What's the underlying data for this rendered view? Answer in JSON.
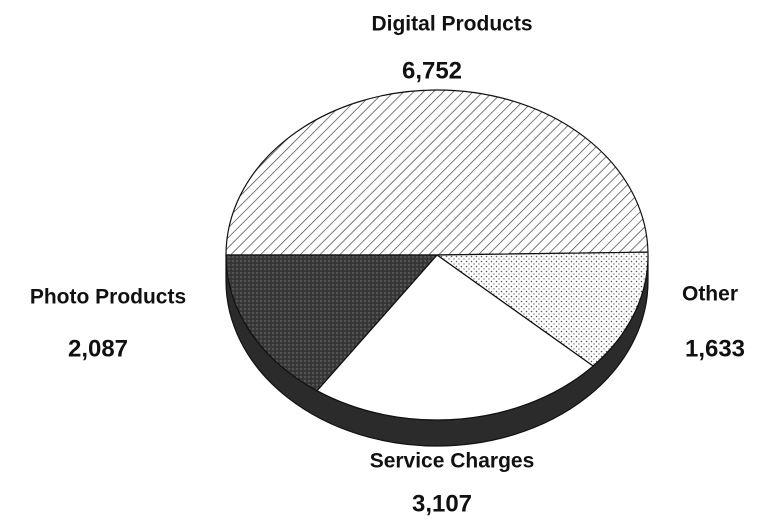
{
  "chart_data": {
    "type": "pie",
    "categories": [
      "Digital Products",
      "Other",
      "Service Charges",
      "Photo Products"
    ],
    "values": [
      6752,
      1633,
      3107,
      2087
    ],
    "value_labels": [
      "6,752",
      "1,633",
      "3,107",
      "2,087"
    ]
  }
}
